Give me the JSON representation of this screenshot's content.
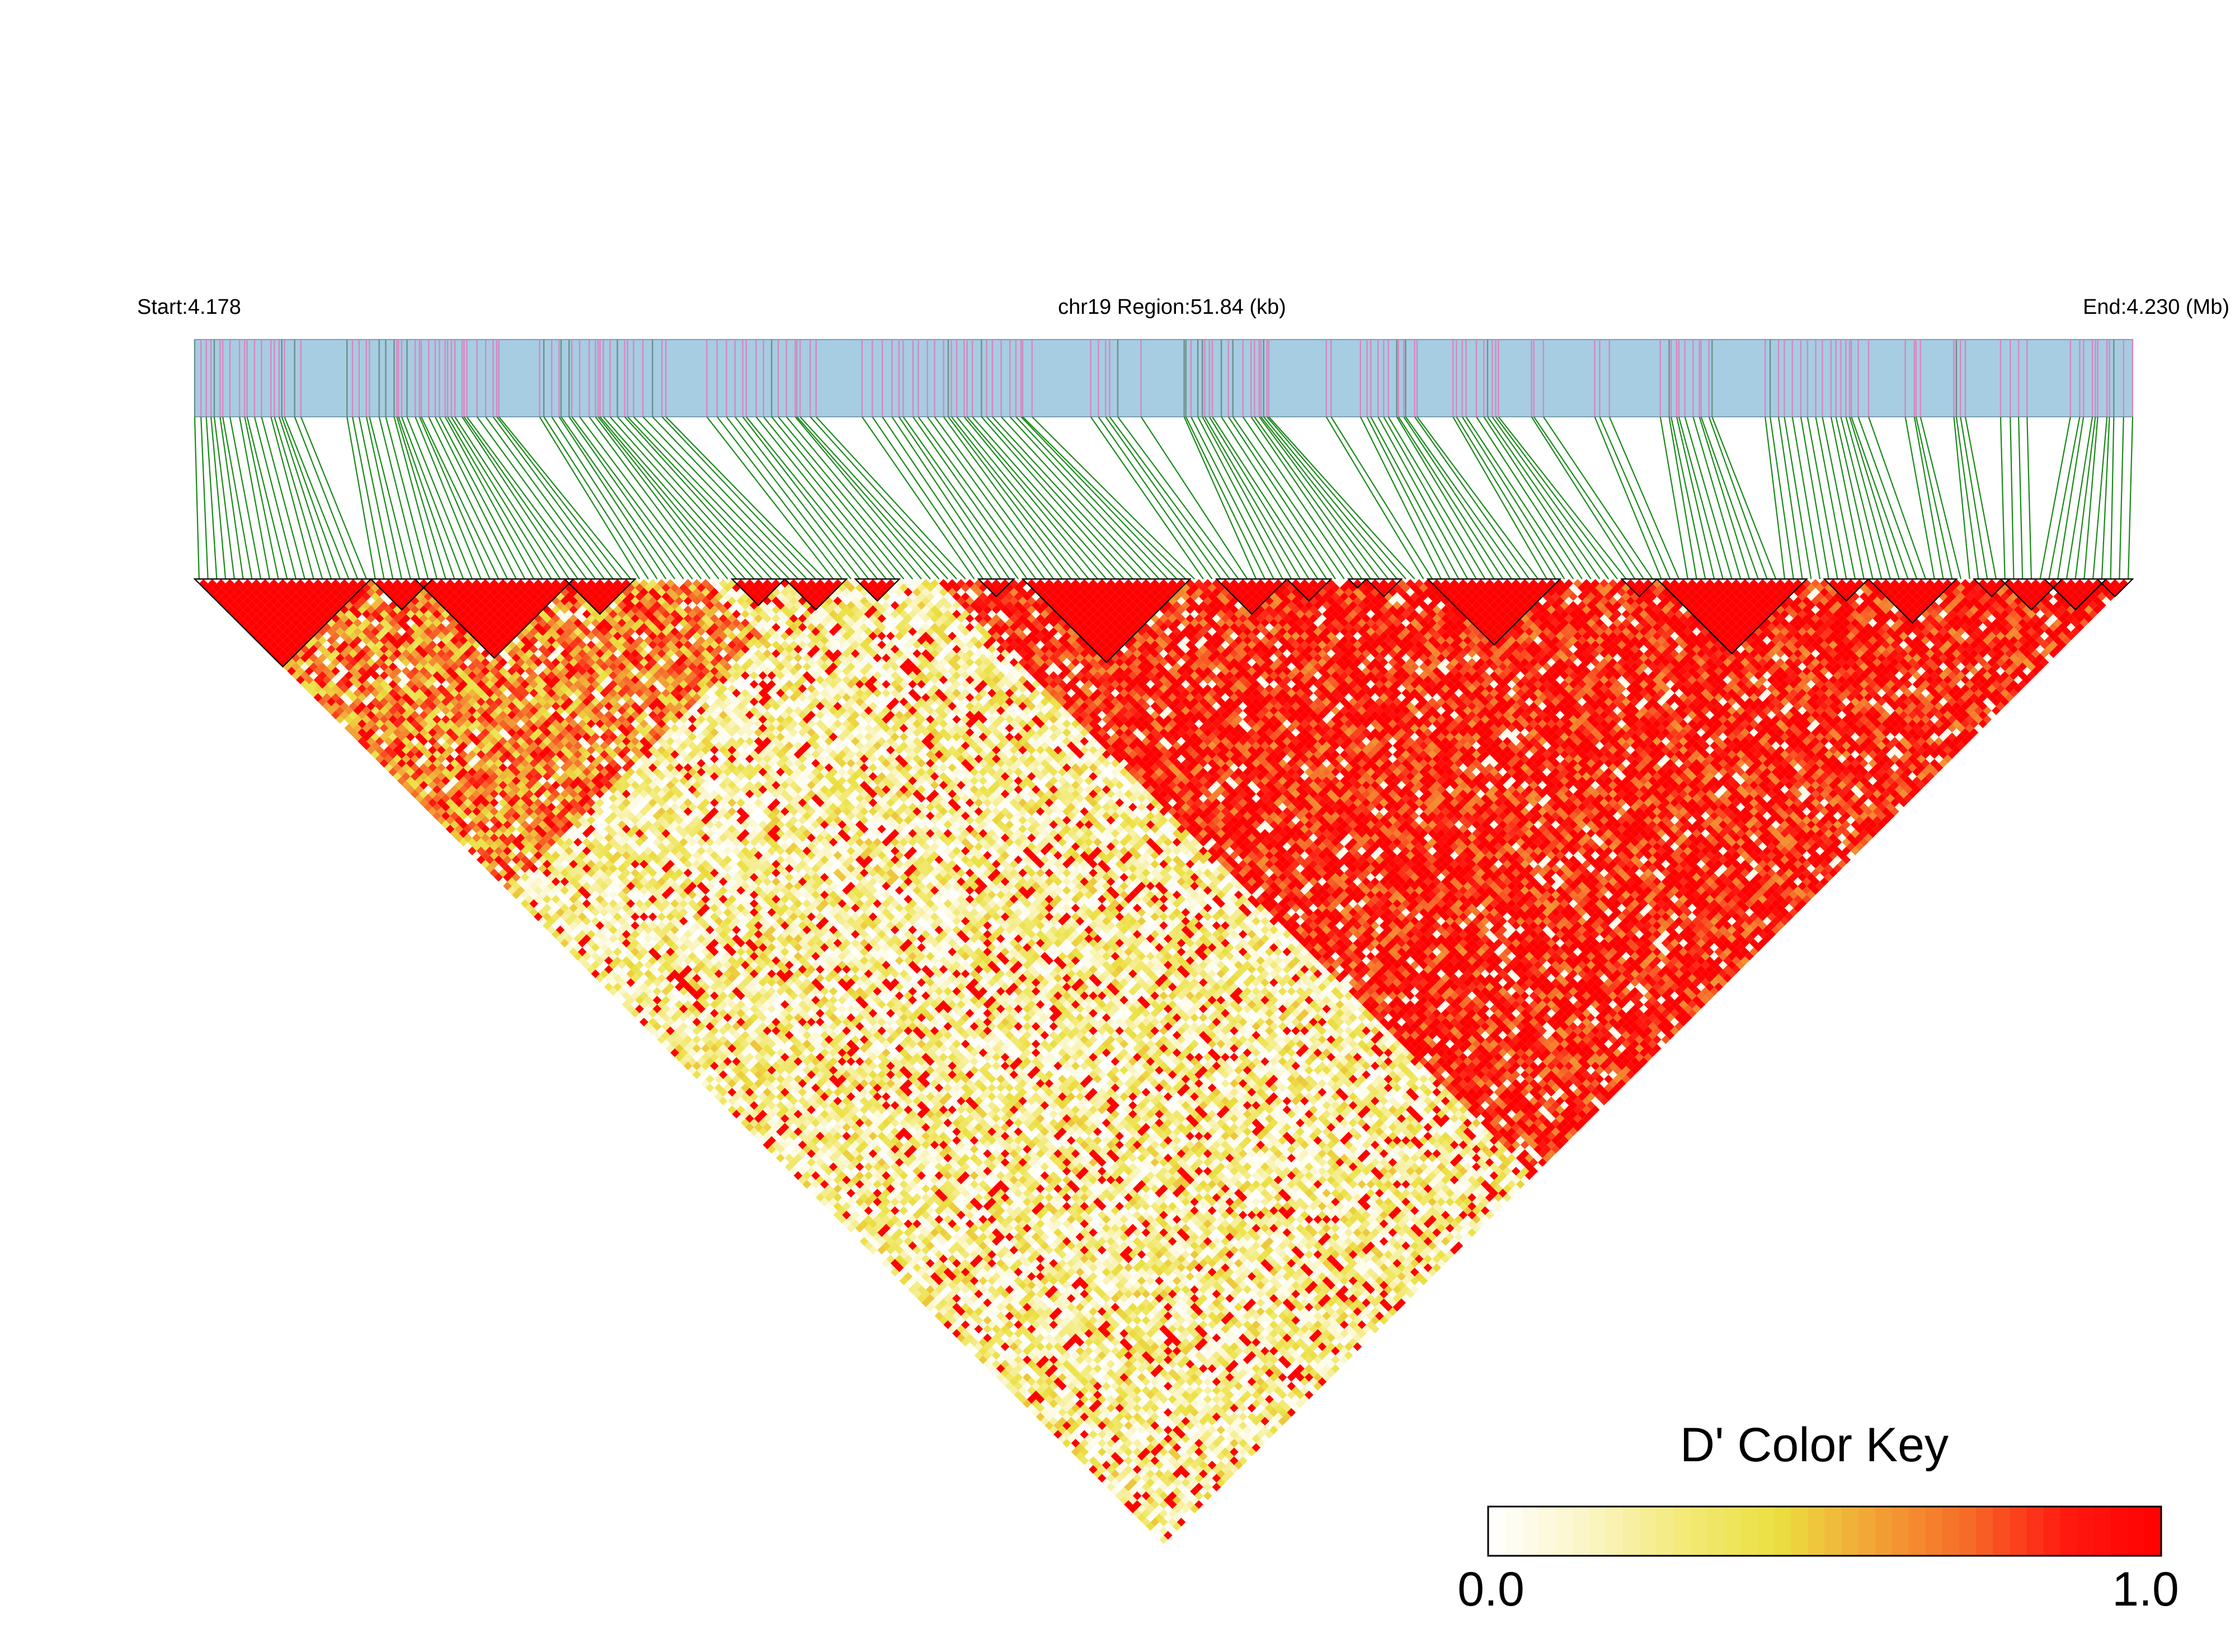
{
  "chart_data": {
    "type": "heatmap",
    "subtype": "linkage-disequilibrium-triangle",
    "header": {
      "start_label": "Start:4.178",
      "region_label": "chr19 Region:51.84 (kb)",
      "end_label": "End:4.230 (Mb)"
    },
    "region": {
      "chrom": "chr19",
      "start_mb": 4.178,
      "end_mb": 4.23,
      "length_kb": 51.84
    },
    "snp_count": 220,
    "value_range": [
      0.0,
      1.0
    ],
    "colors": {
      "track_bg": "#a6cde2",
      "track_tick": "#d986c0",
      "track_tick_dark": "#6e8f8a",
      "connector": "#1a8a1a",
      "block_outline": "#000000",
      "high": "#ff0000",
      "low": "#ffffff"
    },
    "ld_blocks_by_fraction": [
      [
        0.0,
        0.085
      ],
      [
        0.095,
        0.115
      ],
      [
        0.118,
        0.19
      ],
      [
        0.195,
        0.22
      ],
      [
        0.28,
        0.3
      ],
      [
        0.31,
        0.33
      ],
      [
        0.345,
        0.36
      ],
      [
        0.41,
        0.42
      ],
      [
        0.43,
        0.51
      ],
      [
        0.53,
        0.56
      ],
      [
        0.57,
        0.58
      ],
      [
        0.6,
        0.6
      ],
      [
        0.61,
        0.62
      ],
      [
        0.64,
        0.7
      ],
      [
        0.74,
        0.75
      ],
      [
        0.76,
        0.83
      ],
      [
        0.845,
        0.86
      ],
      [
        0.87,
        0.905
      ],
      [
        0.925,
        0.935
      ],
      [
        0.94,
        0.96
      ],
      [
        0.96,
        0.985
      ],
      [
        0.99,
        1.0
      ]
    ],
    "color_key": {
      "title": "D' Color Key",
      "min_label": "0.0",
      "max_label": "1.0",
      "stops": [
        "#ffffff",
        "#fbf6c8",
        "#f3ea7a",
        "#ebe040",
        "#f2a436",
        "#f66a28",
        "#ff1a10",
        "#ff0000"
      ]
    }
  }
}
